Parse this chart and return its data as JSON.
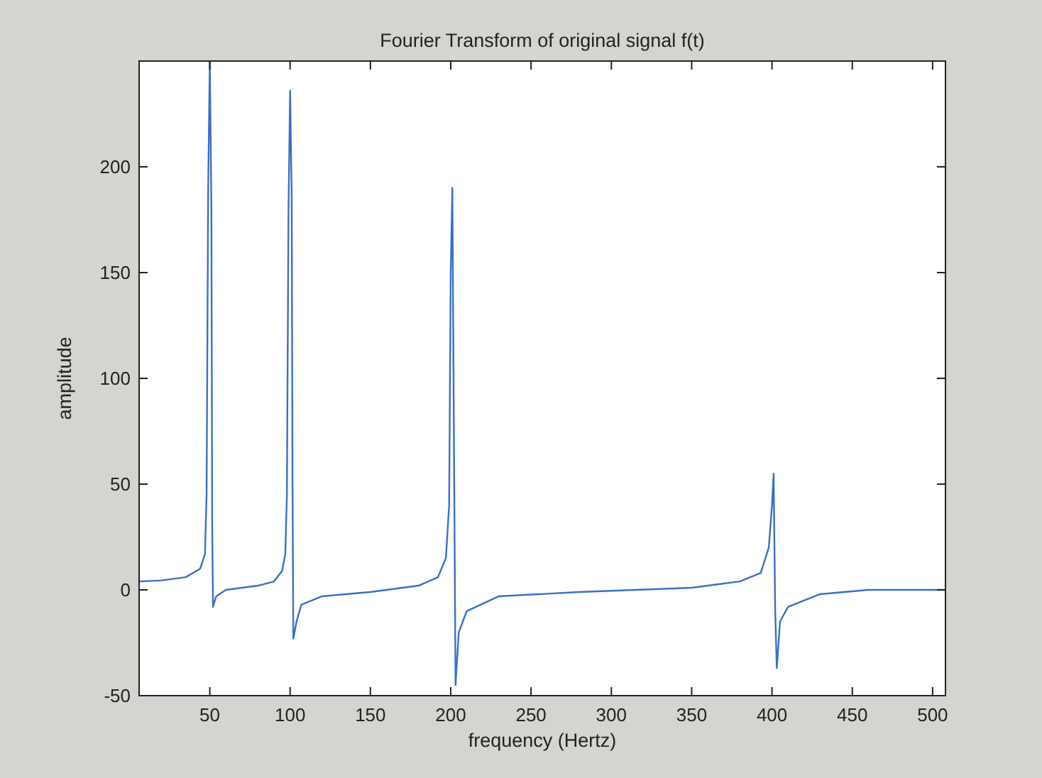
{
  "chart_data": {
    "type": "line",
    "title": "Fourier Transform of original signal f(t)",
    "xlabel": "frequency (Hertz)",
    "ylabel": "amplitude",
    "x": [
      6,
      20,
      35,
      44,
      47,
      48,
      49,
      50,
      51,
      51.5,
      52,
      54,
      60,
      80,
      90,
      95,
      97,
      98,
      99,
      100,
      101,
      101.5,
      102,
      104,
      107,
      120,
      150,
      180,
      192,
      197,
      199,
      200,
      201,
      202,
      203,
      205,
      210,
      230,
      280,
      350,
      380,
      393,
      398,
      400,
      401,
      402,
      403,
      405,
      410,
      430,
      460,
      508
    ],
    "series": [
      {
        "color": "#3a70c4",
        "values": [
          4,
          4.5,
          6,
          10,
          17,
          45,
          190,
          250,
          180,
          30,
          -8,
          -3,
          0,
          2,
          4,
          9,
          17,
          45,
          180,
          236,
          185,
          50,
          -23,
          -15,
          -7,
          -3,
          -1,
          2,
          6,
          15,
          40,
          150,
          190,
          70,
          -45,
          -20,
          -10,
          -3,
          -1,
          1,
          4,
          8,
          20,
          40,
          55,
          -10,
          -37,
          -15,
          -8,
          -2,
          0,
          0
        ]
      }
    ],
    "xlim": [
      6,
      508
    ],
    "ylim": [
      -50,
      250
    ],
    "xticks": [
      50,
      100,
      150,
      200,
      250,
      300,
      350,
      400,
      450,
      500
    ],
    "yticks": [
      -50,
      0,
      50,
      100,
      150,
      200
    ],
    "grid": false
  }
}
